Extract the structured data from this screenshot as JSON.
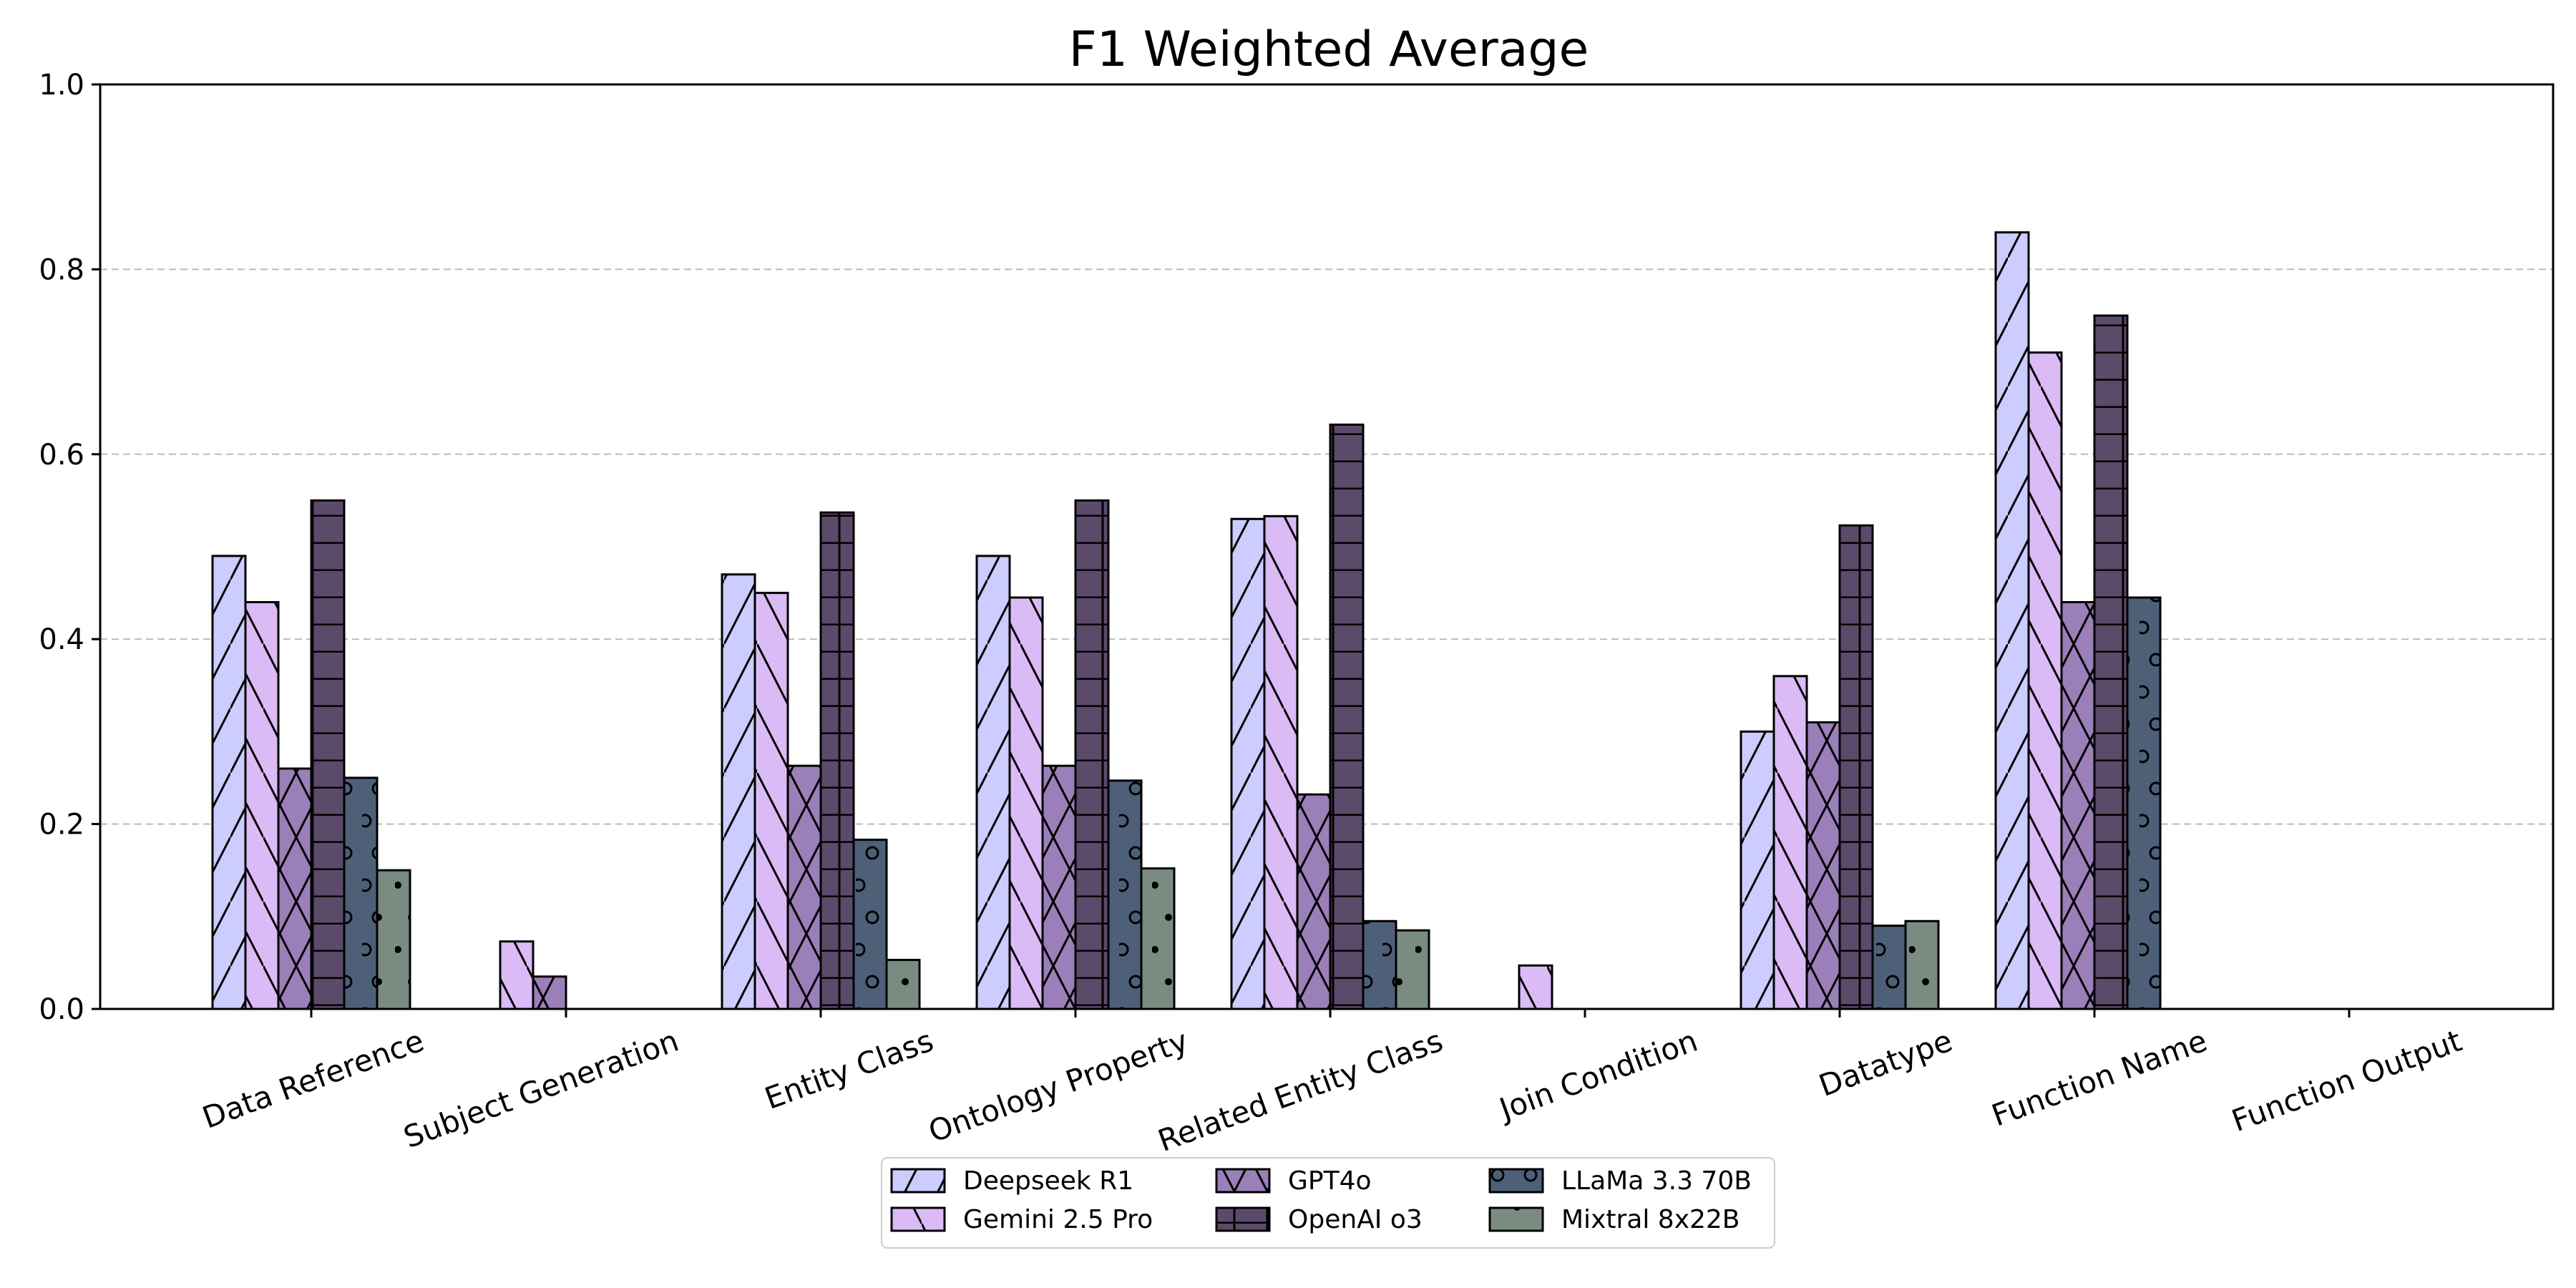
{
  "chart_data": {
    "type": "bar",
    "title": "F1 Weighted Average",
    "xlabel": "",
    "ylabel": "",
    "ylim": [
      0,
      1.0
    ],
    "yticks": [
      "0.0",
      "0.2",
      "0.4",
      "0.6",
      "0.8",
      "1.0"
    ],
    "grid": "y-dashed",
    "legend_position": "bottom-center",
    "categories": [
      "Data Reference",
      "Subject Generation",
      "Entity Class",
      "Ontology Property",
      "Related Entity Class",
      "Join Condition",
      "Datatype",
      "Function Name",
      "Function Output"
    ],
    "series": [
      {
        "name": "Deepseek R1",
        "color": "#ccccff",
        "hatch": "diagonal-forward",
        "values": [
          0.49,
          0.0,
          0.47,
          0.49,
          0.53,
          0.0,
          0.3,
          0.84,
          0.0
        ]
      },
      {
        "name": "Gemini 2.5 Pro",
        "color": "#dabbf5",
        "hatch": "diagonal-back",
        "values": [
          0.44,
          0.073,
          0.45,
          0.445,
          0.533,
          0.047,
          0.36,
          0.71,
          0.0
        ]
      },
      {
        "name": "GPT4o",
        "color": "#9b7fb8",
        "hatch": "cross",
        "values": [
          0.26,
          0.035,
          0.263,
          0.263,
          0.232,
          0.0,
          0.31,
          0.44,
          0.0
        ]
      },
      {
        "name": "OpenAI o3",
        "color": "#5b4a6a",
        "hatch": "horizontal-grid",
        "values": [
          0.55,
          0.0,
          0.537,
          0.55,
          0.632,
          0.0,
          0.523,
          0.75,
          0.0
        ]
      },
      {
        "name": "LLaMa 3.3 70B",
        "color": "#4e6078",
        "hatch": "circles",
        "values": [
          0.25,
          0.0,
          0.183,
          0.247,
          0.095,
          0.0,
          0.09,
          0.445,
          0.0
        ]
      },
      {
        "name": "Mixtral 8x22B",
        "color": "#7a8c82",
        "hatch": "dots",
        "values": [
          0.15,
          0.0,
          0.053,
          0.152,
          0.085,
          0.0,
          0.095,
          0.0,
          0.0
        ]
      }
    ]
  }
}
